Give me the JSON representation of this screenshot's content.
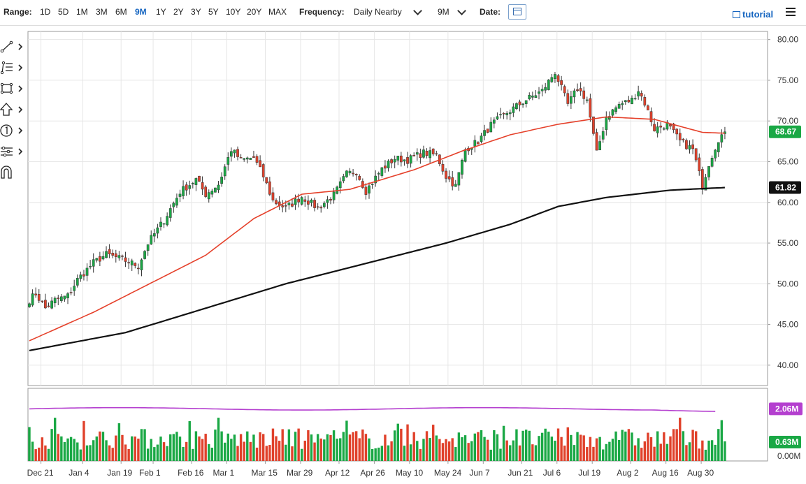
{
  "toolbar": {
    "range_label": "Range:",
    "ranges": [
      "1D",
      "5D",
      "1M",
      "3M",
      "6M",
      "9M",
      "1Y",
      "2Y",
      "3Y",
      "5Y",
      "10Y",
      "20Y",
      "MAX"
    ],
    "selected_range": "9M",
    "frequency_label": "Frequency:",
    "frequency_value": "Daily Nearby",
    "period_value": "9M",
    "date_label": "Date:",
    "tutorial_label": "tutorial"
  },
  "side_tools": [
    "line-tool-icon",
    "fib-tool-icon",
    "shape-tool-icon",
    "arrow-tool-icon",
    "annotation-tool-icon",
    "measure-tool-icon",
    "magnet-icon"
  ],
  "colors": {
    "up": "#1aa845",
    "down": "#e0412b",
    "ma_fast": "#e5402a",
    "ma_slow": "#111111",
    "volume_ma": "#b43fcf",
    "grid": "#e6e6e6",
    "price_badge": "#1aa845"
  },
  "chart_data": [
    {
      "type": "candlestick",
      "title": "",
      "x_tick_labels": [
        "Dec 21",
        "Jan 4",
        "Jan 19",
        "Feb 1",
        "Feb 16",
        "Mar 1",
        "Mar 15",
        "Mar 29",
        "Apr 12",
        "Apr 26",
        "May 10",
        "May 24",
        "Jun 7",
        "Jun 21",
        "Jul 6",
        "Jul 19",
        "Aug 2",
        "Aug 16",
        "Aug 30"
      ],
      "y_tick_labels": [
        "40.00",
        "45.00",
        "50.00",
        "55.00",
        "60.00",
        "65.00",
        "70.00",
        "75.00",
        "80.00"
      ],
      "ylim": [
        37.5,
        81.0
      ],
      "grid": true,
      "last_price": "68.67",
      "slow_ma_last": "61.82",
      "price_anchors": [
        [
          0,
          48.0
        ],
        [
          2,
          48.8
        ],
        [
          5,
          47.0
        ],
        [
          8,
          48.0
        ],
        [
          12,
          48.5
        ],
        [
          15,
          50.5
        ],
        [
          20,
          52.6
        ],
        [
          24,
          53.6
        ],
        [
          29,
          53.0
        ],
        [
          34,
          52.2
        ],
        [
          37,
          55.0
        ],
        [
          42,
          57.8
        ],
        [
          47,
          61.3
        ],
        [
          52,
          62.8
        ],
        [
          55,
          61.0
        ],
        [
          59,
          62.2
        ],
        [
          63,
          66.5
        ],
        [
          66,
          65.2
        ],
        [
          70,
          65.5
        ],
        [
          73,
          63.2
        ],
        [
          76,
          60.2
        ],
        [
          80,
          59.3
        ],
        [
          85,
          60.7
        ],
        [
          90,
          59.3
        ],
        [
          95,
          60.9
        ],
        [
          99,
          63.5
        ],
        [
          102,
          63.8
        ],
        [
          105,
          61.4
        ],
        [
          110,
          64.1
        ],
        [
          114,
          65.4
        ],
        [
          118,
          65.2
        ],
        [
          123,
          66.1
        ],
        [
          127,
          65.8
        ],
        [
          130,
          63.2
        ],
        [
          133,
          62.0
        ],
        [
          136,
          66.5
        ],
        [
          140,
          67.5
        ],
        [
          144,
          69.5
        ],
        [
          149,
          71.0
        ],
        [
          155,
          72.6
        ],
        [
          160,
          73.7
        ],
        [
          164,
          76.0
        ],
        [
          168,
          72.0
        ],
        [
          171,
          74.0
        ],
        [
          174,
          72.6
        ],
        [
          177,
          66.0
        ],
        [
          180,
          70.5
        ],
        [
          184,
          72.0
        ],
        [
          188,
          72.6
        ],
        [
          190,
          73.8
        ],
        [
          192,
          72.2
        ],
        [
          195,
          69.0
        ],
        [
          199,
          69.6
        ],
        [
          203,
          67.5
        ],
        [
          207,
          66.5
        ],
        [
          210,
          62.0
        ],
        [
          212,
          64.8
        ],
        [
          215,
          67.8
        ],
        [
          217,
          68.67
        ]
      ],
      "fast_ma_anchors": [
        [
          0,
          43.0
        ],
        [
          20,
          46.5
        ],
        [
          40,
          50.5
        ],
        [
          55,
          53.5
        ],
        [
          70,
          58.0
        ],
        [
          85,
          61.0
        ],
        [
          100,
          61.6
        ],
        [
          120,
          64.0
        ],
        [
          135,
          66.3
        ],
        [
          150,
          68.3
        ],
        [
          165,
          69.6
        ],
        [
          180,
          70.5
        ],
        [
          195,
          70.2
        ],
        [
          210,
          68.6
        ],
        [
          217,
          68.5
        ]
      ],
      "slow_ma_anchors": [
        [
          0,
          41.8
        ],
        [
          30,
          44.0
        ],
        [
          55,
          47.0
        ],
        [
          80,
          50.0
        ],
        [
          105,
          52.5
        ],
        [
          130,
          55.0
        ],
        [
          150,
          57.3
        ],
        [
          165,
          59.5
        ],
        [
          180,
          60.6
        ],
        [
          200,
          61.5
        ],
        [
          217,
          61.82
        ]
      ]
    },
    {
      "type": "bar",
      "title": "",
      "series": [
        {
          "values": []
        }
      ],
      "y_tick_labels": [
        "0.00M"
      ],
      "volume_badge": "0.63M",
      "volume_ma_badge": "2.06M",
      "volume_ma_level_m": 2.06,
      "volume_max_m": 2.45
    }
  ]
}
